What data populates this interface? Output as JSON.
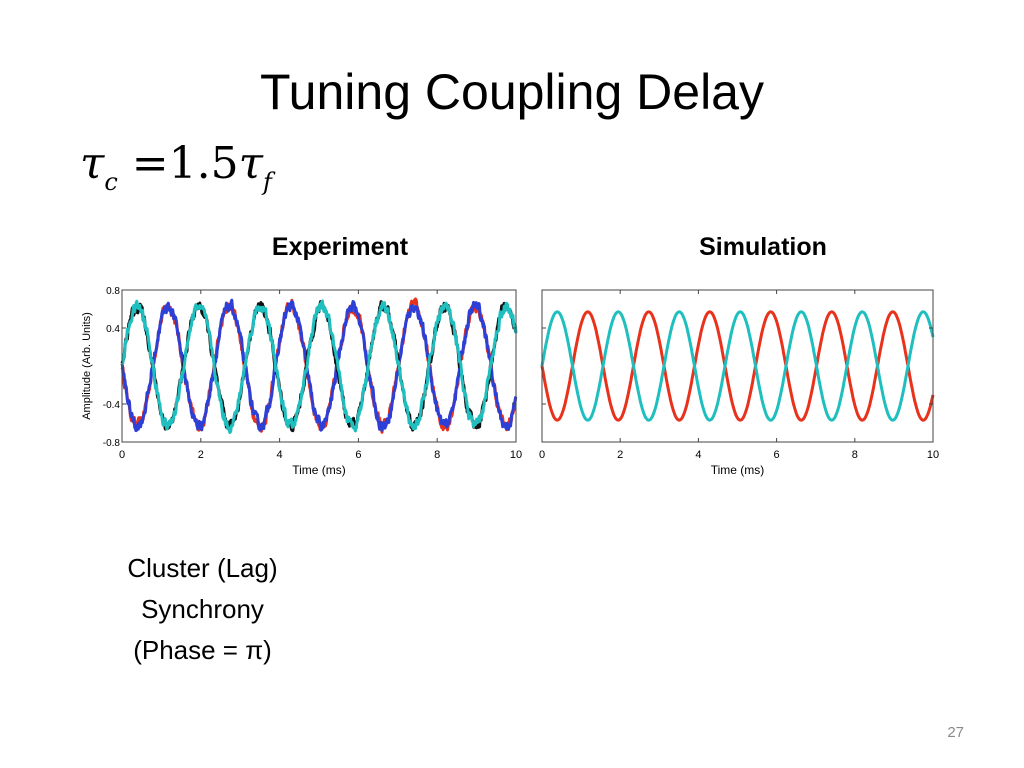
{
  "slide": {
    "title": "Tuning Coupling Delay",
    "formula": {
      "lhs_symbol": "τ",
      "lhs_subscript": "c",
      "equals": "=",
      "factor": "1.5",
      "rhs_symbol": "τ",
      "rhs_subscript": "f"
    },
    "caption_lines": [
      "Cluster (Lag)",
      "Synchrony",
      "(Phase = π)"
    ],
    "page_number": "27"
  },
  "chart_data": [
    {
      "type": "line",
      "title": "Experiment",
      "xlabel": "Time (ms)",
      "ylabel": "Amplitude (Arb. Units)",
      "xlim": [
        0,
        10
      ],
      "ylim": [
        -0.8,
        0.8
      ],
      "x_ticks": [
        "0",
        "2",
        "4",
        "6",
        "8",
        "10"
      ],
      "y_ticks": [
        "0.8",
        "0.4",
        "-0.4",
        "-0.8"
      ],
      "y_tick_values": [
        0.8,
        0.4,
        -0.4,
        -0.8
      ],
      "grid": false,
      "waveform": {
        "kind": "sinusoid",
        "period_ms": 1.56,
        "amplitude": 0.63,
        "note_noise": true
      },
      "series": [
        {
          "color": "#e8321c",
          "phase_offset_ms": 0.78
        },
        {
          "color": "#2c3fd6",
          "phase_offset_ms": 0.78
        },
        {
          "color": "#111111",
          "phase_offset_ms": 0.0
        },
        {
          "color": "#1fbfbf",
          "phase_offset_ms": 0.0
        }
      ]
    },
    {
      "type": "line",
      "title": "Simulation",
      "xlabel": "Time (ms)",
      "ylabel": "",
      "xlim": [
        0,
        10
      ],
      "ylim": [
        -0.8,
        0.8
      ],
      "x_ticks": [
        "0",
        "2",
        "4",
        "6",
        "8",
        "10"
      ],
      "y_ticks": [],
      "y_tick_values": [],
      "grid": false,
      "waveform": {
        "kind": "sinusoid",
        "period_ms": 1.56,
        "amplitude": 0.57,
        "note_noise": false
      },
      "series": [
        {
          "color": "#e8321c",
          "phase_offset_ms": 0.78
        },
        {
          "color": "#1fbfbf",
          "phase_offset_ms": 0.0
        }
      ]
    }
  ]
}
